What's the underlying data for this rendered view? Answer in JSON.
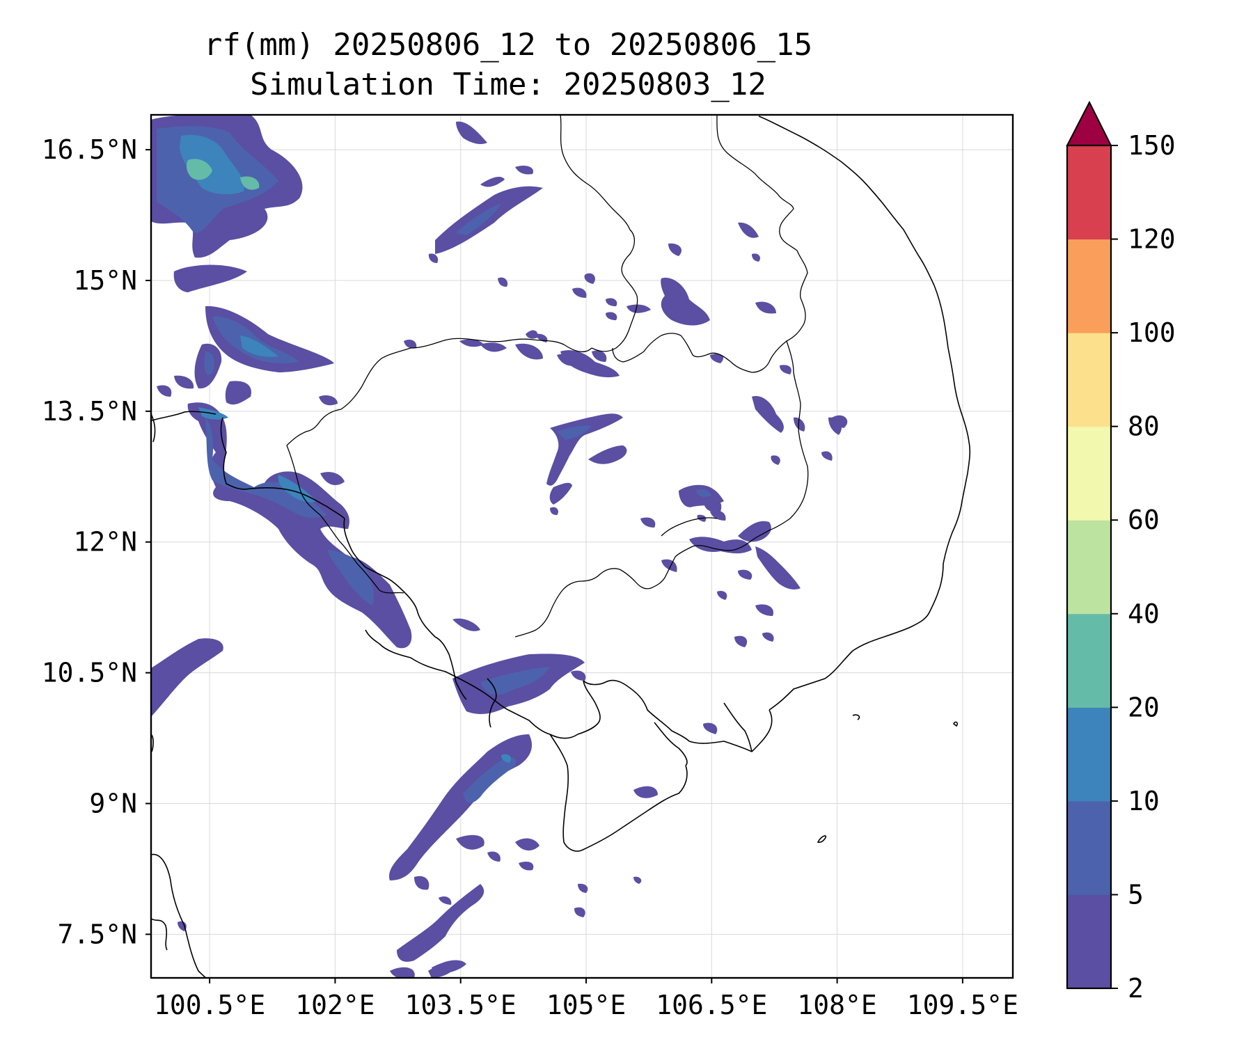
{
  "title": {
    "line1": "rf(mm) 20250806_12 to 20250806_15",
    "line2": "Simulation Time: 20250803_12"
  },
  "map": {
    "lon_range": [
      99.8,
      110.1
    ],
    "lat_range": [
      7.0,
      16.9
    ],
    "x_ticks": [
      {
        "value": 100.5,
        "label": "100.5°E"
      },
      {
        "value": 102,
        "label": "102°E"
      },
      {
        "value": 103.5,
        "label": "103.5°E"
      },
      {
        "value": 105,
        "label": "105°E"
      },
      {
        "value": 106.5,
        "label": "106.5°E"
      },
      {
        "value": 108,
        "label": "108°E"
      },
      {
        "value": 109.5,
        "label": "109.5°E"
      }
    ],
    "y_ticks": [
      {
        "value": 7.5,
        "label": "7.5°N"
      },
      {
        "value": 9,
        "label": "9°N"
      },
      {
        "value": 10.5,
        "label": "10.5°N"
      },
      {
        "value": 12,
        "label": "12°N"
      },
      {
        "value": 13.5,
        "label": "13.5°N"
      },
      {
        "value": 15,
        "label": "15°N"
      },
      {
        "value": 16.5,
        "label": "16.5°N"
      }
    ],
    "grid": true
  },
  "colorbar": {
    "levels": [
      2,
      5,
      10,
      20,
      40,
      60,
      80,
      100,
      120,
      150
    ],
    "labels": [
      "2",
      "5",
      "10",
      "20",
      "40",
      "60",
      "80",
      "100",
      "120",
      "150"
    ],
    "colors": [
      "#5a4fa2",
      "#4d62ac",
      "#3c84bb",
      "#64bca8",
      "#bde3a0",
      "#f2f8ad",
      "#fce08b",
      "#f99f5b",
      "#d84050"
    ],
    "extend_color": "#9e0142"
  }
}
